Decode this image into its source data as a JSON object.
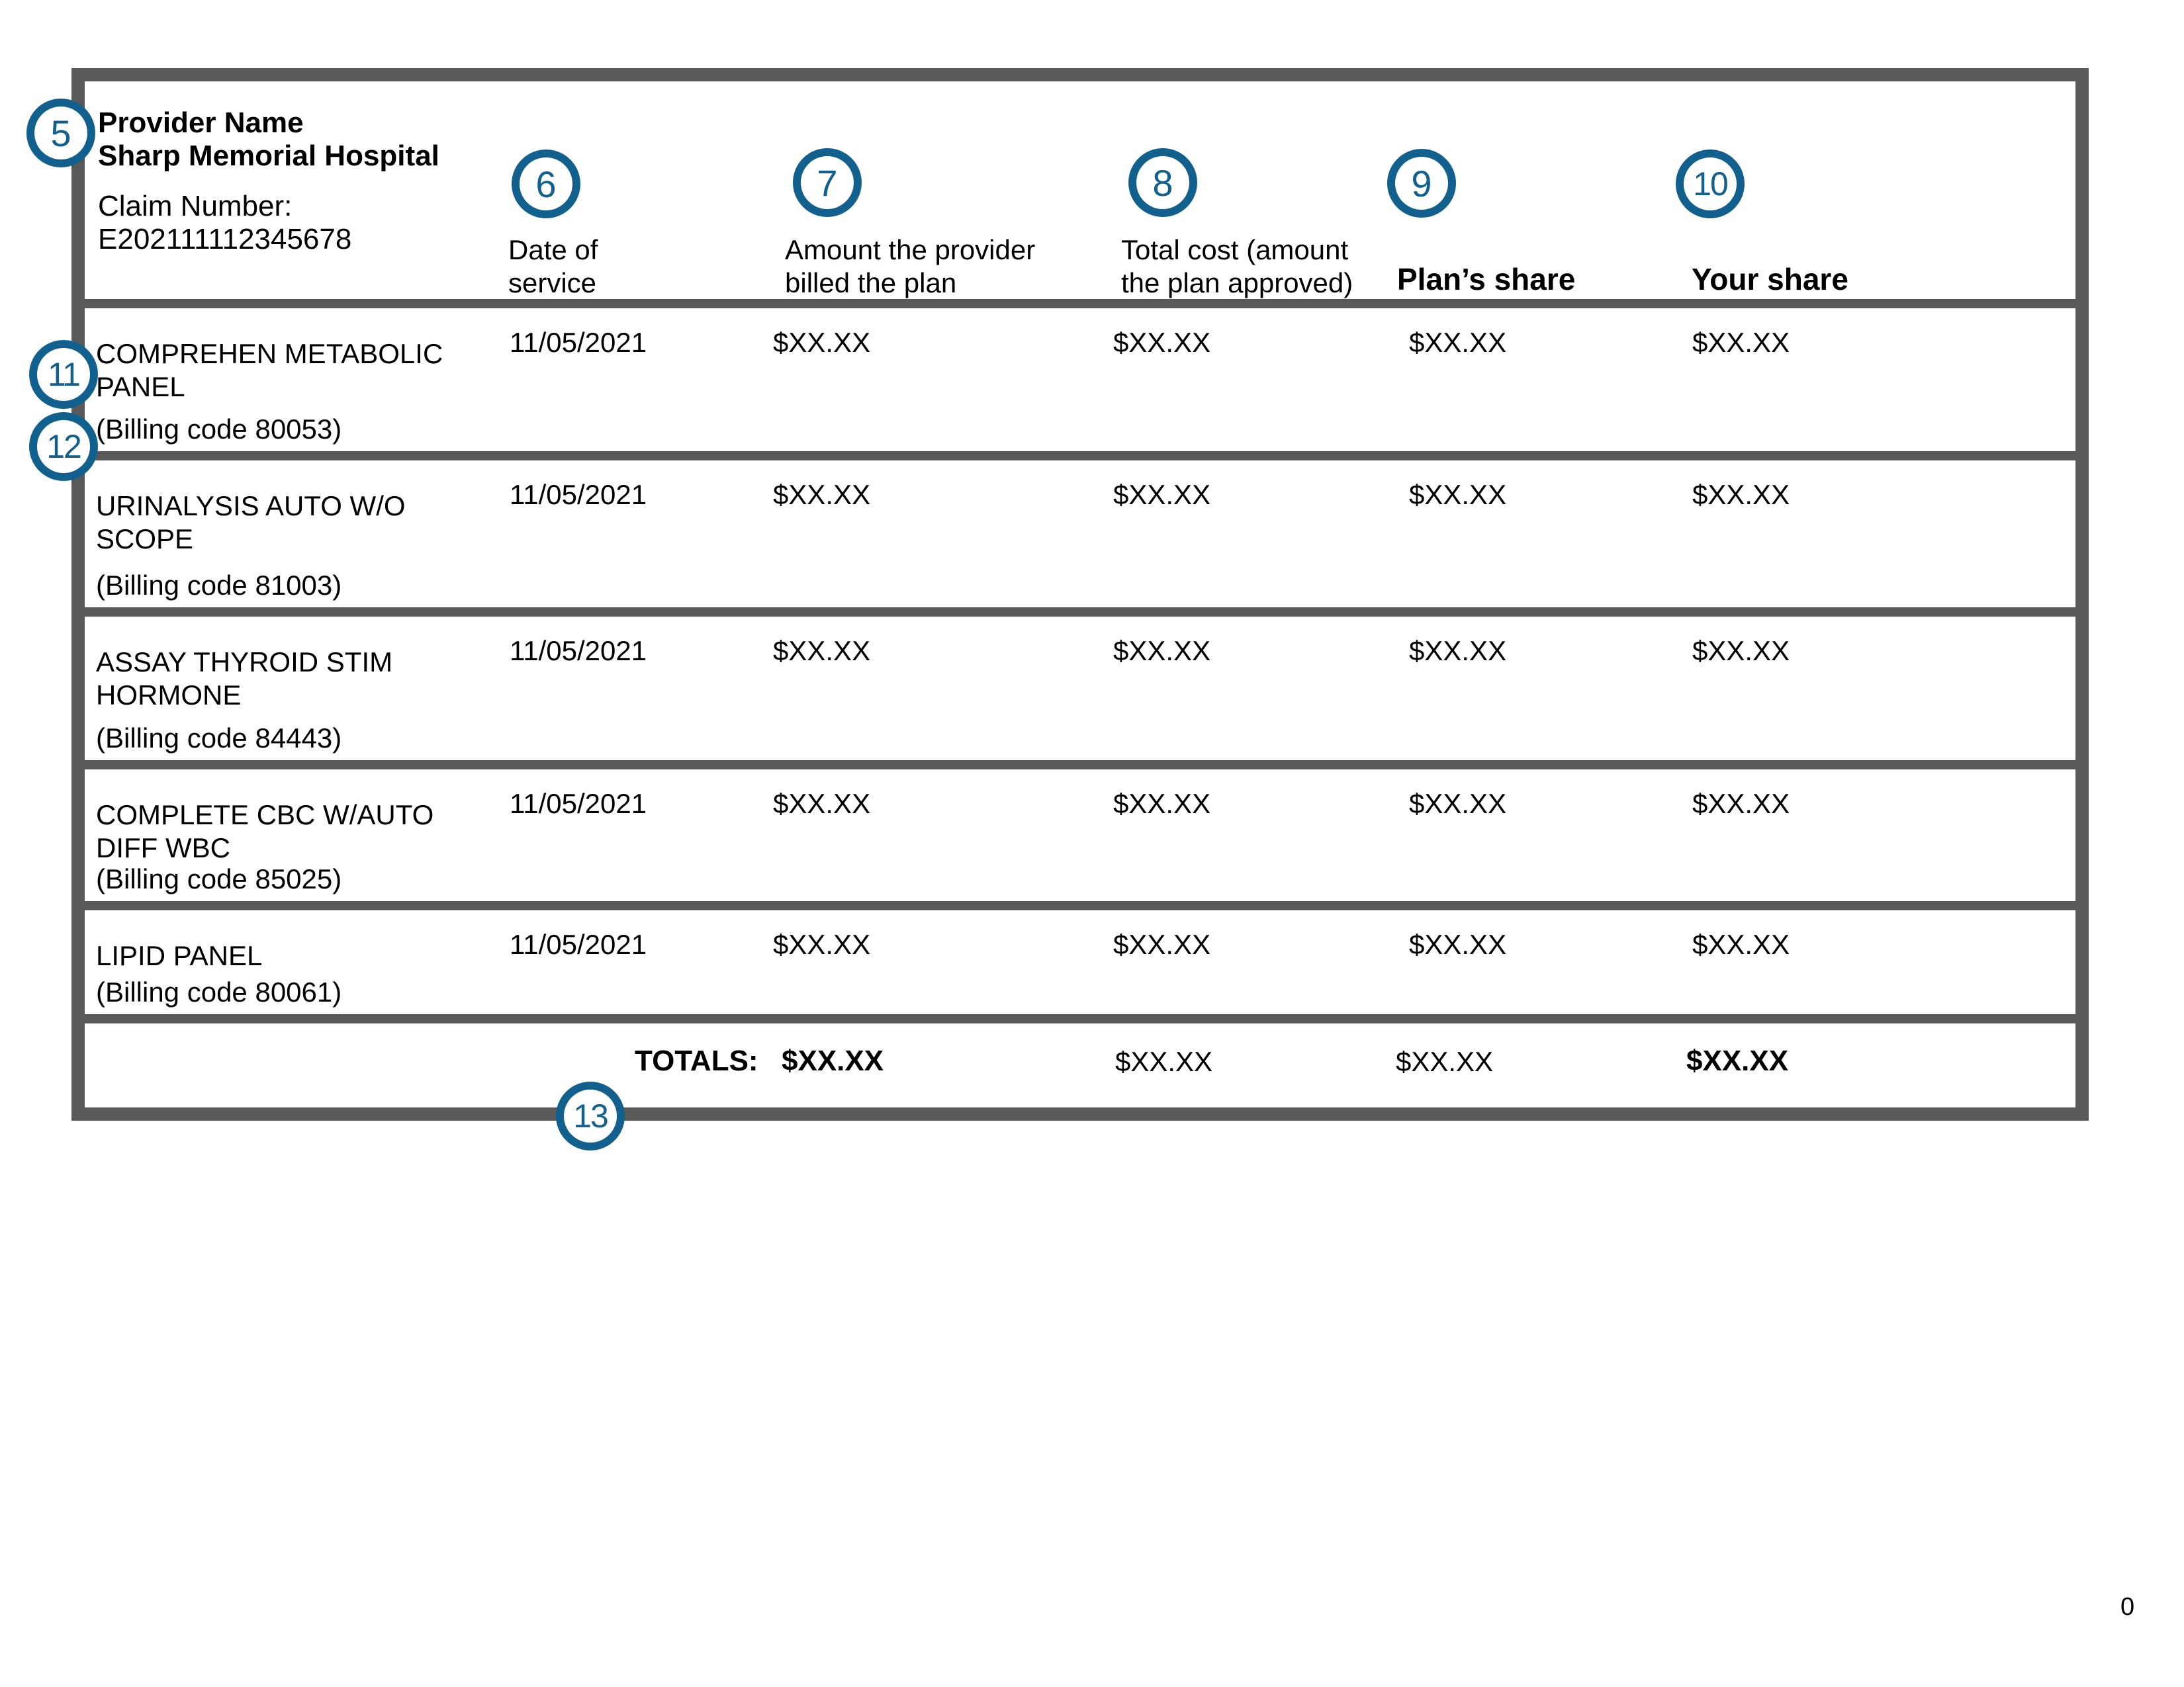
{
  "colors": {
    "accent_blue": "#11608E",
    "border_gray": "#595959",
    "text": "#000000"
  },
  "page_number": "0",
  "callouts": {
    "n5": "5",
    "n6": "6",
    "n7": "7",
    "n8": "8",
    "n9": "9",
    "n10": "10",
    "n11": "11",
    "n12": "12",
    "n13": "13"
  },
  "header": {
    "provider_label": "Provider Name",
    "provider_name": "Sharp Memorial Hospital",
    "claim_label": "Claim Number:",
    "claim_number": "E202111112345678",
    "col_date": [
      "Date of",
      "service"
    ],
    "col_billed": [
      "Amount the provider",
      "billed the plan"
    ],
    "col_total": [
      "Total cost (amount",
      "the plan approved)"
    ],
    "col_plan": "Plan’s share",
    "col_your": "Your share"
  },
  "rows": [
    {
      "service": [
        "COMPREHEN METABOLIC",
        "PANEL"
      ],
      "billing": "(Billing code 80053)",
      "date": "11/05/2021",
      "billed": "$XX.XX",
      "total": "$XX.XX",
      "plan": "$XX.XX",
      "your": "$XX.XX"
    },
    {
      "service": [
        "URINALYSIS AUTO W/O",
        "SCOPE"
      ],
      "billing": "(Billing code 81003)",
      "date": "11/05/2021",
      "billed": "$XX.XX",
      "total": "$XX.XX",
      "plan": "$XX.XX",
      "your": "$XX.XX"
    },
    {
      "service": [
        "ASSAY THYROID STIM",
        "HORMONE"
      ],
      "billing": "(Billing code 84443)",
      "date": "11/05/2021",
      "billed": "$XX.XX",
      "total": "$XX.XX",
      "plan": "$XX.XX",
      "your": "$XX.XX"
    },
    {
      "service": [
        "COMPLETE CBC W/AUTO",
        "DIFF WBC"
      ],
      "billing": "(Billing code 85025)",
      "date": "11/05/2021",
      "billed": "$XX.XX",
      "total": "$XX.XX",
      "plan": "$XX.XX",
      "your": "$XX.XX"
    },
    {
      "service": [
        "LIPID PANEL"
      ],
      "billing": "(Billing code 80061)",
      "date": "11/05/2021",
      "billed": "$XX.XX",
      "total": "$XX.XX",
      "plan": "$XX.XX",
      "your": "$XX.XX"
    }
  ],
  "totals": {
    "label": "TOTALS:",
    "billed": "$XX.XX",
    "total": "$XX.XX",
    "plan": "$XX.XX",
    "your": "$XX.XX"
  }
}
